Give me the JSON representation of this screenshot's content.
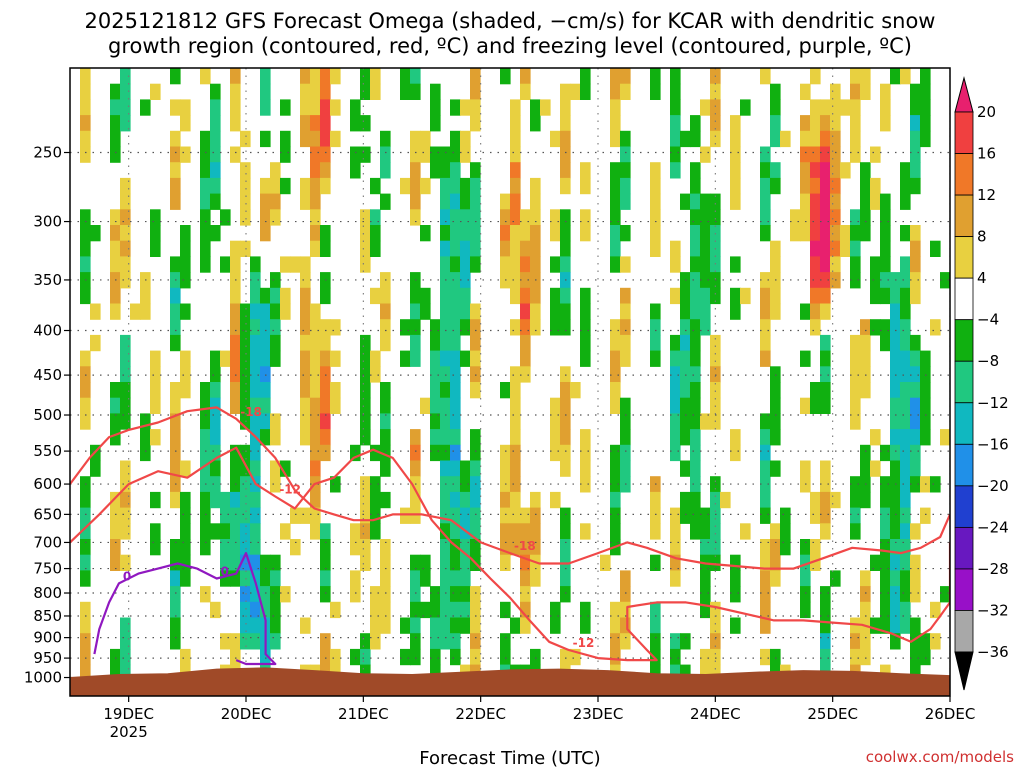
{
  "chart_data": {
    "type": "heatmap",
    "title_line1": "2025121812 GFS Forecast Omega (shaded, −cm/s) for KCAR with dendritic snow",
    "title_line2": "growth region (contoured, red, ºC) and freezing level (contoured, purple, ºC)",
    "xlabel": "Forecast Time (UTC)",
    "ylabel": "",
    "credit": "coolwx.com/models",
    "y_axis": {
      "scale": "log-pressure",
      "range": [
        1050,
        200
      ],
      "ticks": [
        "250",
        "300",
        "350",
        "400",
        "450",
        "500",
        "550",
        "600",
        "650",
        "700",
        "750",
        "800",
        "850",
        "900",
        "950",
        "1000"
      ]
    },
    "x_axis": {
      "range_hours": [
        0,
        180
      ],
      "ticks": [
        {
          "hour": 12,
          "label": "19DEC",
          "sub": "2025"
        },
        {
          "hour": 36,
          "label": "20DEC",
          "sub": ""
        },
        {
          "hour": 60,
          "label": "21DEC",
          "sub": ""
        },
        {
          "hour": 84,
          "label": "22DEC",
          "sub": ""
        },
        {
          "hour": 108,
          "label": "23DEC",
          "sub": ""
        },
        {
          "hour": 132,
          "label": "24DEC",
          "sub": ""
        },
        {
          "hour": 156,
          "label": "25DEC",
          "sub": ""
        },
        {
          "hour": 180,
          "label": "26DEC",
          "sub": ""
        }
      ]
    },
    "colorbar": {
      "labels": [
        "20",
        "16",
        "12",
        "8",
        "4",
        "−4",
        "−8",
        "−12",
        "−16",
        "−20",
        "−24",
        "−28",
        "−32",
        "−36"
      ],
      "colors": [
        "#e8206e",
        "#f04040",
        "#f07828",
        "#e0a030",
        "#e8d040",
        "#ffffff",
        "#10b010",
        "#20c880",
        "#10b8c0",
        "#2090e8",
        "#2040d0",
        "#6818c0",
        "#9810c8",
        "#a8a8a8",
        "#000000"
      ]
    },
    "omega_features": [
      {
        "hour": 30,
        "p_top": 280,
        "p_bot": 720,
        "value": -8
      },
      {
        "hour": 34,
        "p_top": 290,
        "p_bot": 560,
        "value": 12
      },
      {
        "hour": 37,
        "p_top": 380,
        "p_bot": 880,
        "value": -16
      },
      {
        "hour": 50,
        "p_top": 220,
        "p_bot": 650,
        "value": 8
      },
      {
        "hour": 78,
        "p_top": 300,
        "p_bot": 900,
        "value": -12
      },
      {
        "hour": 92,
        "p_top": 260,
        "p_bot": 700,
        "value": 8
      },
      {
        "hour": 127,
        "p_top": 300,
        "p_bot": 640,
        "value": -8
      },
      {
        "hour": 154,
        "p_top": 270,
        "p_bot": 330,
        "value": 20
      },
      {
        "hour": 170,
        "p_top": 380,
        "p_bot": 870,
        "value": -12
      }
    ],
    "contours": [
      {
        "name": "dgz_-12",
        "color": "#f04848",
        "label": "-12",
        "points": [
          [
            0,
            700
          ],
          [
            6,
            650
          ],
          [
            12,
            600
          ],
          [
            18,
            580
          ],
          [
            24,
            590
          ],
          [
            30,
            560
          ],
          [
            34,
            545
          ],
          [
            38,
            600
          ],
          [
            42,
            620
          ],
          [
            46,
            640
          ],
          [
            50,
            600
          ],
          [
            54,
            590
          ],
          [
            58,
            560
          ],
          [
            62,
            548
          ],
          [
            66,
            560
          ],
          [
            70,
            600
          ],
          [
            74,
            660
          ],
          [
            78,
            700
          ],
          [
            82,
            730
          ],
          [
            86,
            770
          ],
          [
            90,
            810
          ],
          [
            94,
            860
          ],
          [
            98,
            910
          ],
          [
            102,
            930
          ],
          [
            108,
            950
          ],
          [
            114,
            955
          ],
          [
            120,
            955
          ],
          [
            118,
            930
          ],
          [
            114,
            880
          ],
          [
            114,
            830
          ],
          [
            120,
            820
          ],
          [
            126,
            820
          ],
          [
            132,
            830
          ],
          [
            138,
            845
          ],
          [
            144,
            860
          ],
          [
            150,
            860
          ],
          [
            156,
            865
          ],
          [
            162,
            870
          ],
          [
            168,
            890
          ],
          [
            172,
            910
          ],
          [
            176,
            880
          ],
          [
            178,
            850
          ],
          [
            180,
            820
          ],
          [
            180,
            700
          ]
        ]
      },
      {
        "name": "dgz_-18",
        "color": "#f04848",
        "label": "-18",
        "points": [
          [
            0,
            600
          ],
          [
            4,
            560
          ],
          [
            8,
            530
          ],
          [
            12,
            520
          ],
          [
            18,
            510
          ],
          [
            24,
            495
          ],
          [
            30,
            490
          ],
          [
            34,
            505
          ],
          [
            38,
            530
          ],
          [
            42,
            560
          ],
          [
            46,
            610
          ],
          [
            50,
            640
          ],
          [
            54,
            650
          ],
          [
            58,
            660
          ],
          [
            62,
            660
          ],
          [
            66,
            650
          ],
          [
            72,
            650
          ],
          [
            78,
            660
          ],
          [
            84,
            700
          ],
          [
            90,
            720
          ],
          [
            96,
            740
          ],
          [
            102,
            740
          ],
          [
            108,
            720
          ],
          [
            114,
            700
          ],
          [
            118,
            710
          ],
          [
            124,
            730
          ],
          [
            130,
            740
          ],
          [
            136,
            745
          ],
          [
            142,
            750
          ],
          [
            148,
            750
          ],
          [
            154,
            730
          ],
          [
            160,
            710
          ],
          [
            166,
            715
          ],
          [
            170,
            720
          ],
          [
            174,
            710
          ],
          [
            178,
            690
          ],
          [
            180,
            650
          ]
        ]
      },
      {
        "name": "freezing_0",
        "color": "#9018c0",
        "label": "0",
        "points": [
          [
            5,
            940
          ],
          [
            6,
            880
          ],
          [
            8,
            820
          ],
          [
            10,
            780
          ],
          [
            14,
            760
          ],
          [
            18,
            750
          ],
          [
            22,
            740
          ],
          [
            26,
            750
          ],
          [
            30,
            770
          ],
          [
            34,
            760
          ],
          [
            36,
            720
          ],
          [
            38,
            780
          ],
          [
            40,
            860
          ],
          [
            40,
            940
          ],
          [
            42,
            965
          ],
          [
            36,
            965
          ],
          [
            34,
            955
          ]
        ]
      }
    ],
    "terrain": {
      "color": "#a04a28",
      "surface_pressure": [
        1000,
        992,
        990,
        978,
        975,
        982,
        990,
        992,
        986,
        980,
        978,
        982,
        990,
        992,
        986,
        982,
        984,
        990,
        995
      ]
    }
  }
}
